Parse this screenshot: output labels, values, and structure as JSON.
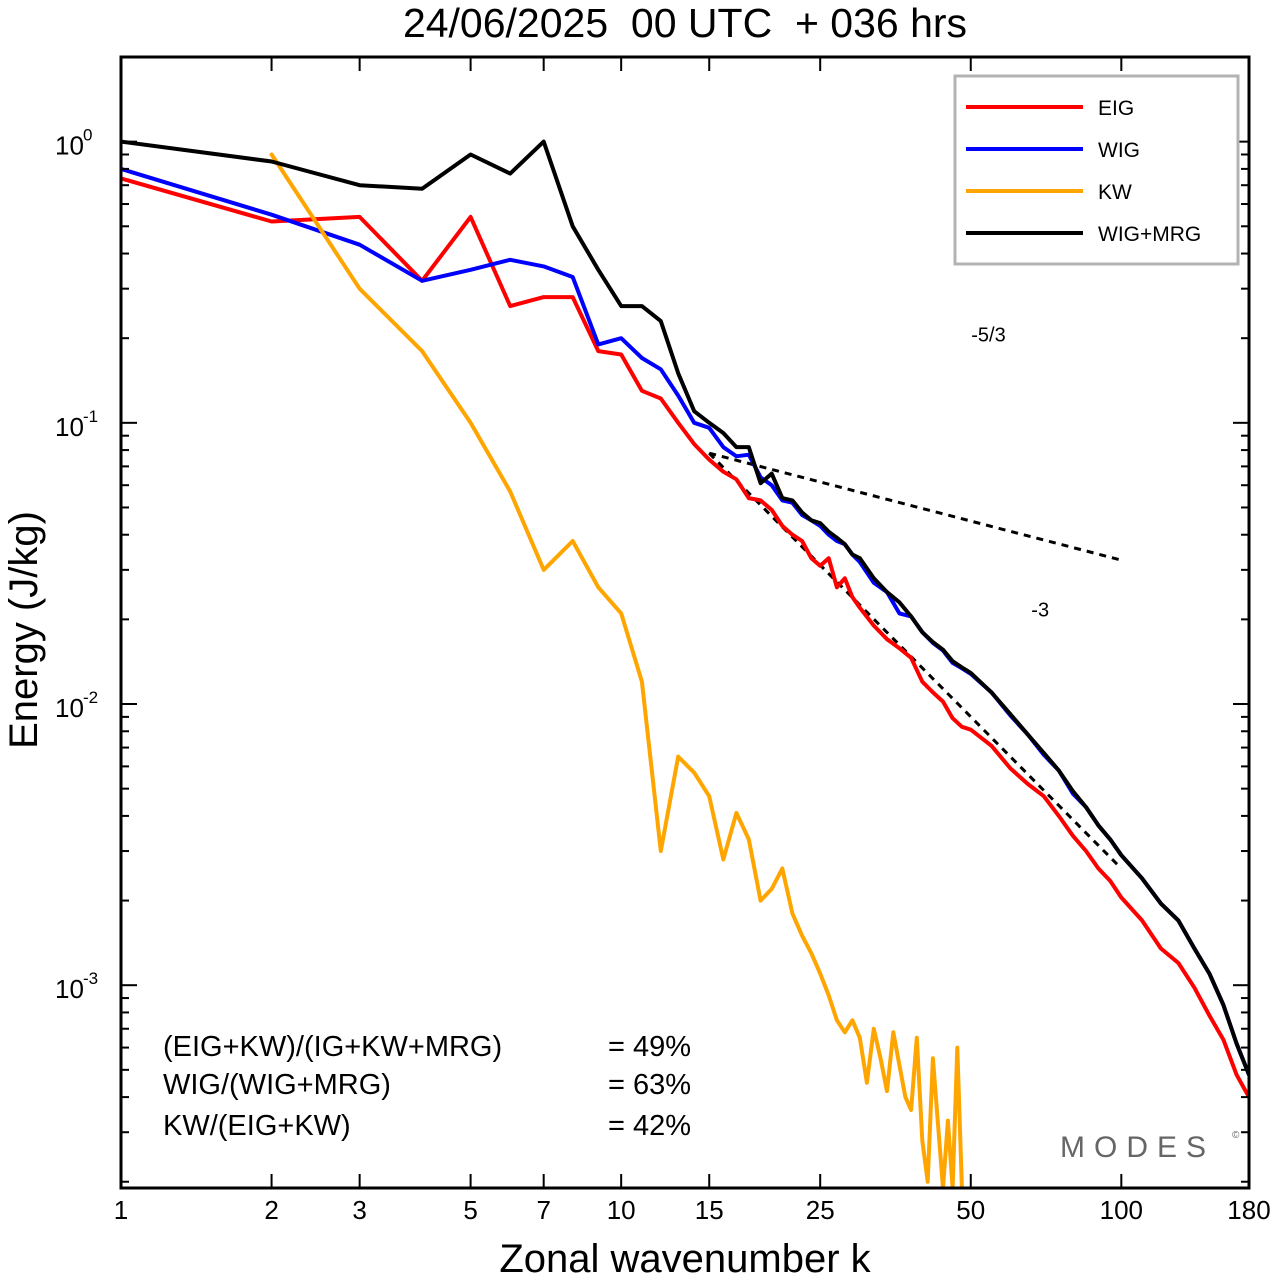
{
  "chart_data": {
    "type": "line",
    "title": "24/06/2025  00 UTC  + 036 hrs",
    "xlabel": "Zonal wavenumber k",
    "ylabel": "Energy (J/kg)",
    "xscale": "log",
    "yscale": "log",
    "xlim": [
      1,
      180
    ],
    "ylim": [
      0.00019,
      2.0
    ],
    "grid": false,
    "legend_position": "top-right",
    "x_ticks": [
      1,
      2,
      3,
      5,
      7,
      10,
      15,
      25,
      50,
      100,
      180
    ],
    "x_tick_labels": [
      "1",
      "2",
      "3",
      "5",
      "7",
      "10",
      "15",
      "25",
      "50",
      "100",
      "180"
    ],
    "y_ticks": [
      1,
      0.1,
      0.01,
      0.001
    ],
    "y_tick_labels": [
      {
        "base": "10",
        "exp": "0"
      },
      {
        "base": "10",
        "exp": "-1"
      },
      {
        "base": "10",
        "exp": "-2"
      },
      {
        "base": "10",
        "exp": "-3"
      }
    ],
    "series": [
      {
        "name": "EIG",
        "color": "#ff0000",
        "points": [
          [
            1,
            0.74
          ],
          [
            2,
            0.52
          ],
          [
            3,
            0.54
          ],
          [
            4,
            0.32
          ],
          [
            5,
            0.54
          ],
          [
            6,
            0.26
          ],
          [
            7,
            0.28
          ],
          [
            8,
            0.28
          ],
          [
            9,
            0.18
          ],
          [
            10,
            0.175
          ],
          [
            11,
            0.13
          ],
          [
            12,
            0.122
          ],
          [
            13,
            0.1
          ],
          [
            14,
            0.084
          ],
          [
            15,
            0.074
          ],
          [
            16,
            0.067
          ],
          [
            17,
            0.063
          ],
          [
            18,
            0.054
          ],
          [
            19,
            0.053
          ],
          [
            20,
            0.049
          ],
          [
            21,
            0.043
          ],
          [
            22,
            0.04
          ],
          [
            23,
            0.038
          ],
          [
            24,
            0.033
          ],
          [
            25,
            0.031
          ],
          [
            26,
            0.033
          ],
          [
            27,
            0.026
          ],
          [
            28,
            0.028
          ],
          [
            29,
            0.024
          ],
          [
            30,
            0.022
          ],
          [
            32,
            0.019
          ],
          [
            34,
            0.017
          ],
          [
            36,
            0.0158
          ],
          [
            38,
            0.0146
          ],
          [
            40,
            0.012
          ],
          [
            42,
            0.011
          ],
          [
            44,
            0.0102
          ],
          [
            46,
            0.0089
          ],
          [
            48,
            0.0083
          ],
          [
            50,
            0.0081
          ],
          [
            55,
            0.0071
          ],
          [
            60,
            0.0059
          ],
          [
            65,
            0.0052
          ],
          [
            70,
            0.0047
          ],
          [
            75,
            0.004
          ],
          [
            80,
            0.0034
          ],
          [
            85,
            0.003
          ],
          [
            90,
            0.0026
          ],
          [
            95,
            0.00235
          ],
          [
            100,
            0.00205
          ],
          [
            110,
            0.0017
          ],
          [
            120,
            0.00135
          ],
          [
            130,
            0.0012
          ],
          [
            140,
            0.00098
          ],
          [
            150,
            0.00078
          ],
          [
            160,
            0.00064
          ],
          [
            170,
            0.00048
          ],
          [
            180,
            0.0004
          ]
        ]
      },
      {
        "name": "WIG",
        "color": "#0000ff",
        "points": [
          [
            1,
            0.8
          ],
          [
            2,
            0.55
          ],
          [
            3,
            0.43
          ],
          [
            4,
            0.32
          ],
          [
            5,
            0.35
          ],
          [
            6,
            0.38
          ],
          [
            7,
            0.36
          ],
          [
            8,
            0.33
          ],
          [
            9,
            0.19
          ],
          [
            10,
            0.2
          ],
          [
            11,
            0.17
          ],
          [
            12,
            0.155
          ],
          [
            13,
            0.125
          ],
          [
            14,
            0.1
          ],
          [
            15,
            0.096
          ],
          [
            16,
            0.082
          ],
          [
            17,
            0.076
          ],
          [
            18,
            0.077
          ],
          [
            19,
            0.064
          ],
          [
            20,
            0.06
          ],
          [
            21,
            0.053
          ],
          [
            22,
            0.052
          ],
          [
            23,
            0.047
          ],
          [
            24,
            0.045
          ],
          [
            25,
            0.043
          ],
          [
            26,
            0.04
          ],
          [
            27,
            0.038
          ],
          [
            28,
            0.037
          ],
          [
            29,
            0.034
          ],
          [
            30,
            0.032
          ],
          [
            32,
            0.027
          ],
          [
            34,
            0.025
          ],
          [
            36,
            0.021
          ],
          [
            38,
            0.0205
          ],
          [
            40,
            0.018
          ],
          [
            42,
            0.0165
          ],
          [
            44,
            0.0155
          ],
          [
            46,
            0.014
          ],
          [
            48,
            0.0134
          ],
          [
            50,
            0.0128
          ],
          [
            55,
            0.011
          ],
          [
            60,
            0.0091
          ],
          [
            65,
            0.0078
          ],
          [
            70,
            0.0066
          ],
          [
            75,
            0.0058
          ],
          [
            80,
            0.0048
          ],
          [
            85,
            0.0043
          ],
          [
            90,
            0.0037
          ],
          [
            95,
            0.0033
          ],
          [
            100,
            0.0029
          ],
          [
            110,
            0.0024
          ],
          [
            120,
            0.00195
          ],
          [
            130,
            0.0017
          ],
          [
            140,
            0.00135
          ],
          [
            150,
            0.0011
          ],
          [
            160,
            0.00085
          ],
          [
            170,
            0.00062
          ],
          [
            180,
            0.00048
          ]
        ]
      },
      {
        "name": "KW",
        "color": "#ffa500",
        "points": [
          [
            2,
            0.9
          ],
          [
            3,
            0.3
          ],
          [
            4,
            0.18
          ],
          [
            5,
            0.1
          ],
          [
            6,
            0.057
          ],
          [
            7,
            0.03
          ],
          [
            8,
            0.038
          ],
          [
            9,
            0.026
          ],
          [
            10,
            0.021
          ],
          [
            11,
            0.012
          ],
          [
            12,
            0.003
          ],
          [
            13,
            0.0065
          ],
          [
            14,
            0.0057
          ],
          [
            15,
            0.0047
          ],
          [
            16,
            0.0028
          ],
          [
            17,
            0.0041
          ],
          [
            18,
            0.0033
          ],
          [
            19,
            0.002
          ],
          [
            20,
            0.0022
          ],
          [
            21,
            0.0026
          ],
          [
            22,
            0.0018
          ],
          [
            23,
            0.0015
          ],
          [
            24,
            0.0013
          ],
          [
            25,
            0.0011
          ],
          [
            26,
            0.00092
          ],
          [
            27,
            0.00075
          ],
          [
            28,
            0.00068
          ],
          [
            29,
            0.00075
          ],
          [
            30,
            0.00065
          ],
          [
            31,
            0.00045
          ],
          [
            32,
            0.0007
          ],
          [
            33,
            0.00055
          ],
          [
            34,
            0.00042
          ],
          [
            35,
            0.00068
          ],
          [
            36,
            0.00052
          ],
          [
            37,
            0.0004
          ],
          [
            38,
            0.00036
          ],
          [
            39,
            0.00065
          ],
          [
            40,
            0.00028
          ],
          [
            41,
            0.0002
          ],
          [
            42,
            0.00055
          ],
          [
            43,
            0.00032
          ],
          [
            44,
            0.00019
          ],
          [
            45,
            0.00033
          ],
          [
            46,
            0.00019
          ],
          [
            47,
            0.0006
          ],
          [
            48,
            0.00019
          ]
        ]
      },
      {
        "name": "WIG+MRG",
        "color": "#000000",
        "points": [
          [
            1,
            1.0
          ],
          [
            2,
            0.85
          ],
          [
            3,
            0.7
          ],
          [
            4,
            0.68
          ],
          [
            5,
            0.9
          ],
          [
            6,
            0.77
          ],
          [
            7,
            1.0
          ],
          [
            8,
            0.5
          ],
          [
            9,
            0.35
          ],
          [
            10,
            0.26
          ],
          [
            11,
            0.26
          ],
          [
            12,
            0.23
          ],
          [
            13,
            0.15
          ],
          [
            14,
            0.11
          ],
          [
            15,
            0.1
          ],
          [
            16,
            0.092
          ],
          [
            17,
            0.082
          ],
          [
            18,
            0.082
          ],
          [
            19,
            0.061
          ],
          [
            20,
            0.066
          ],
          [
            21,
            0.054
          ],
          [
            22,
            0.053
          ],
          [
            23,
            0.048
          ],
          [
            24,
            0.045
          ],
          [
            25,
            0.044
          ],
          [
            26,
            0.041
          ],
          [
            27,
            0.039
          ],
          [
            28,
            0.037
          ],
          [
            29,
            0.034
          ],
          [
            30,
            0.033
          ],
          [
            32,
            0.028
          ],
          [
            34,
            0.025
          ],
          [
            36,
            0.023
          ],
          [
            38,
            0.0205
          ],
          [
            40,
            0.018
          ],
          [
            42,
            0.0166
          ],
          [
            44,
            0.0156
          ],
          [
            46,
            0.0142
          ],
          [
            48,
            0.0135
          ],
          [
            50,
            0.0129
          ],
          [
            55,
            0.011
          ],
          [
            60,
            0.0092
          ],
          [
            65,
            0.0078
          ],
          [
            70,
            0.0067
          ],
          [
            75,
            0.0058
          ],
          [
            80,
            0.0049
          ],
          [
            85,
            0.0043
          ],
          [
            90,
            0.0037
          ],
          [
            95,
            0.0033
          ],
          [
            100,
            0.0029
          ],
          [
            110,
            0.0024
          ],
          [
            120,
            0.00195
          ],
          [
            130,
            0.0017
          ],
          [
            140,
            0.00135
          ],
          [
            150,
            0.0011
          ],
          [
            160,
            0.00085
          ],
          [
            170,
            0.00062
          ],
          [
            180,
            0.00048
          ]
        ]
      }
    ],
    "reference_lines": [
      {
        "label": "-5/3",
        "points": [
          [
            15,
            0.078
          ],
          [
            100,
            0.0325
          ]
        ]
      },
      {
        "label": "-3",
        "points": [
          [
            15,
            0.078
          ],
          [
            100,
            0.0026
          ]
        ]
      }
    ],
    "annotations": [
      {
        "label": "(EIG+KW)/(IG+KW+MRG)",
        "value": "= 49%"
      },
      {
        "label": "WIG/(WIG+MRG)",
        "value": "= 63%"
      },
      {
        "label": "KW/(EIG+KW)",
        "value": "= 42%"
      }
    ],
    "watermark": "MODES",
    "watermark_symbol": "©"
  }
}
